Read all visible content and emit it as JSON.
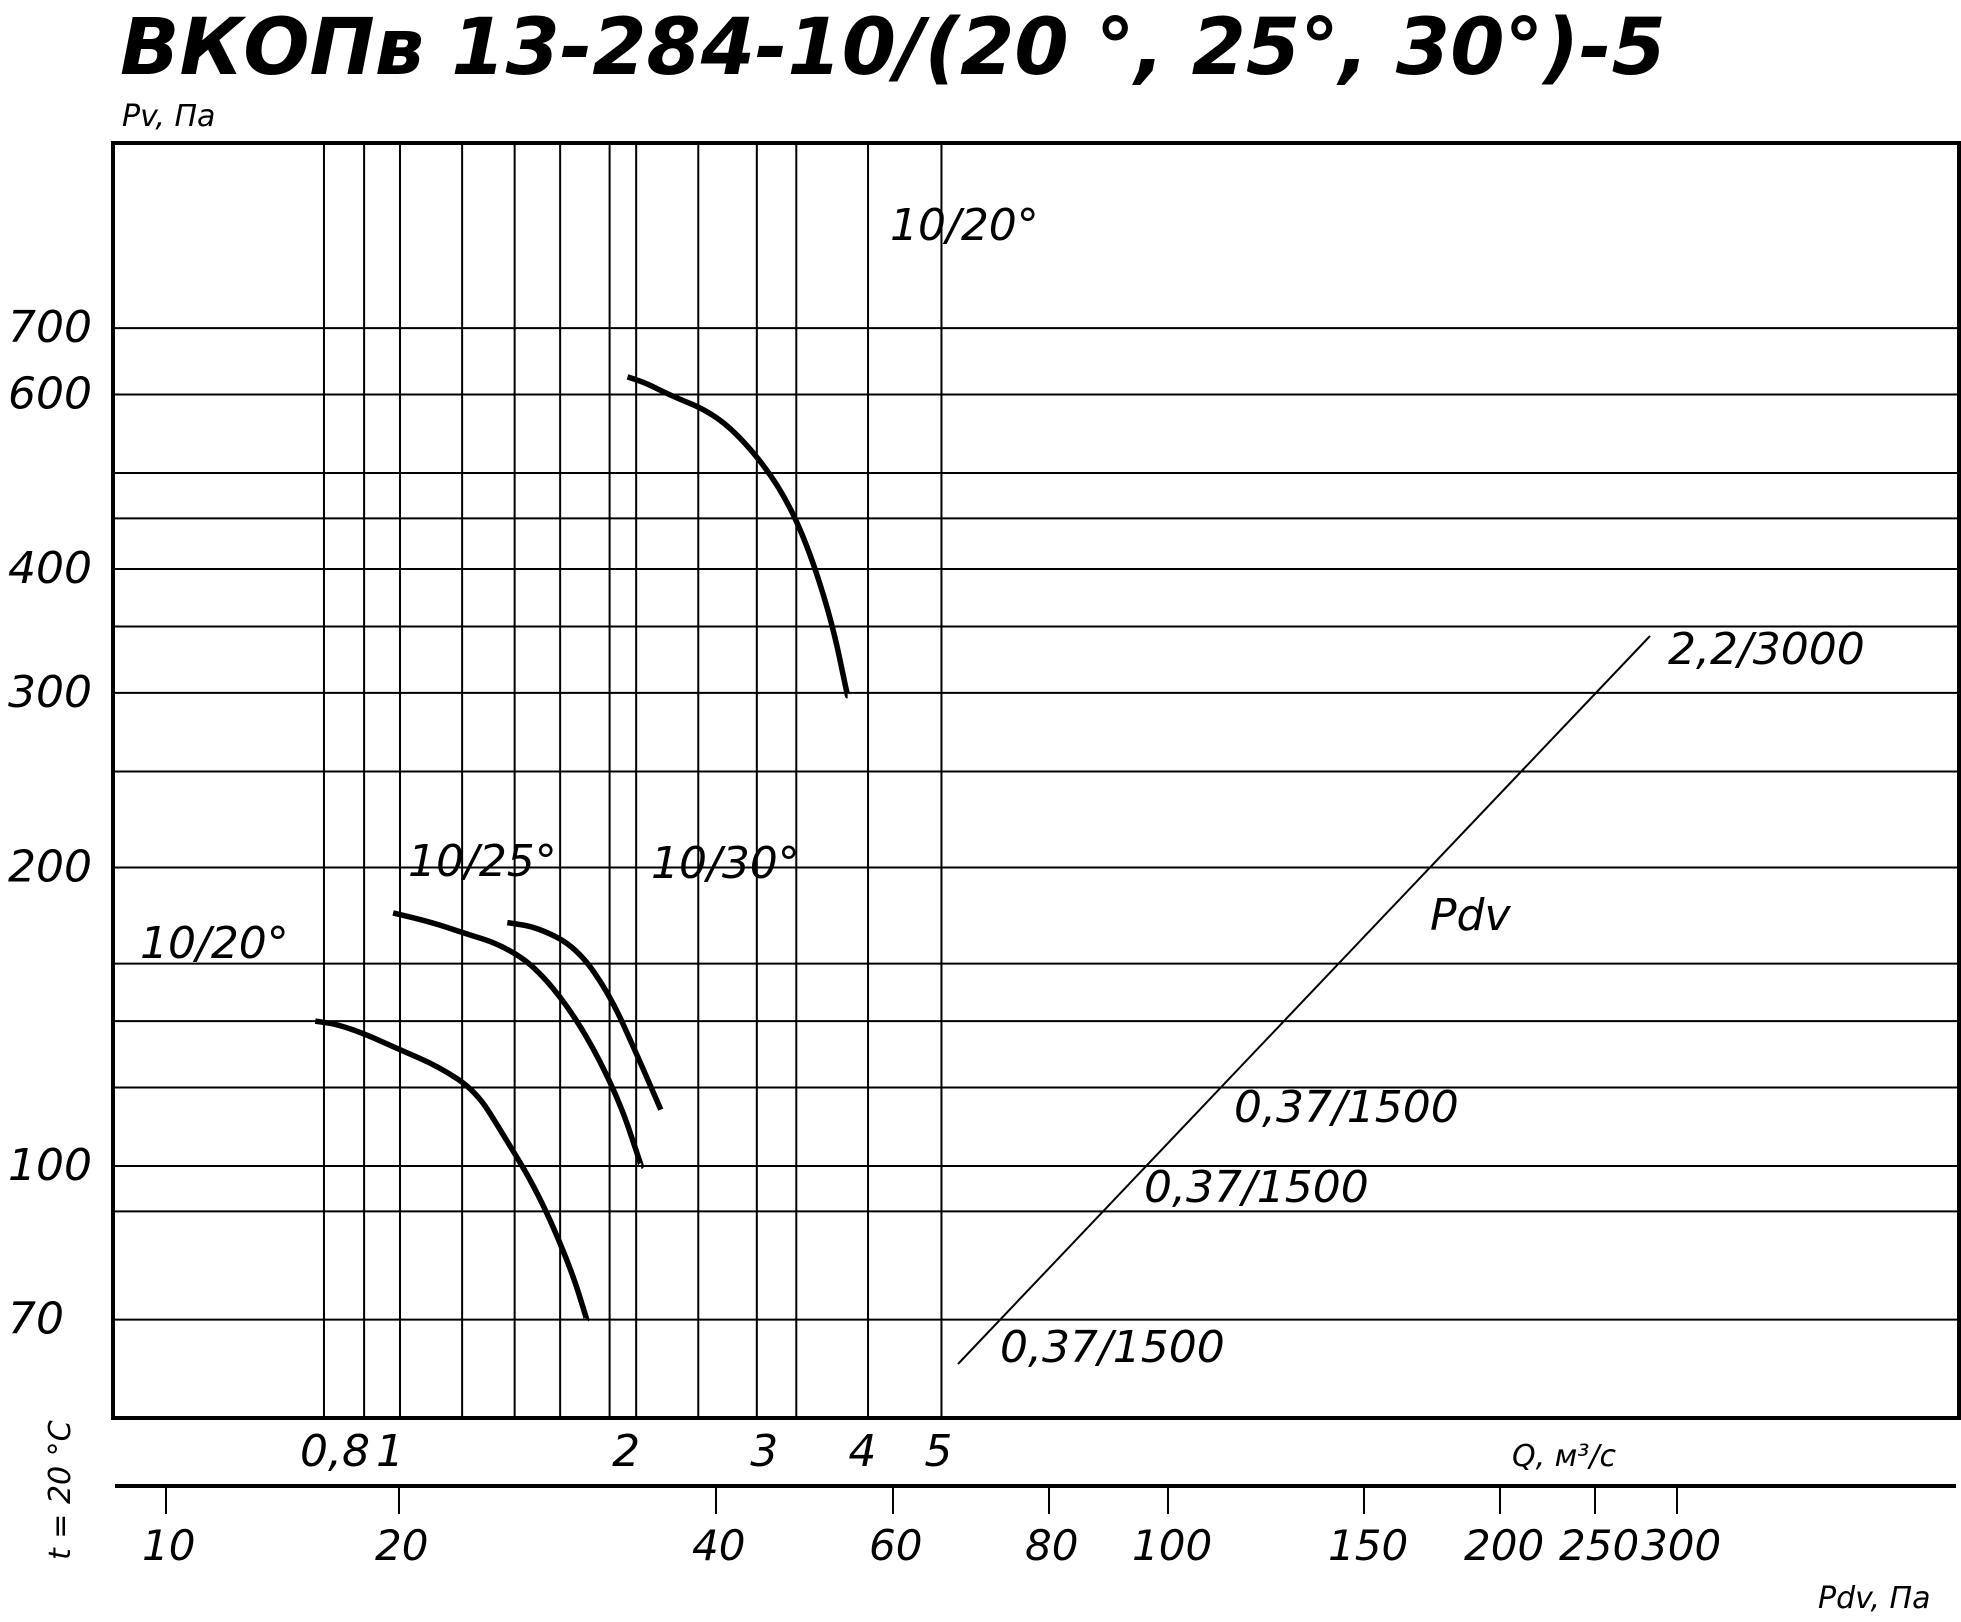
{
  "chart_data": {
    "type": "line",
    "title": "ВКОПв 13-284-10/(20 °, 25°, 30°)-5",
    "ylabel": "Pv, Па",
    "xlabel": "Q, м³/с",
    "x2label": "Pdv, Па",
    "temperature_label": "t = 20 °C",
    "x_scale": "log",
    "y_scale": "log",
    "xlim": [
      0.7,
      5.1
    ],
    "ylim": [
      60,
      800
    ],
    "y_ticks": [
      "700",
      "600",
      "400",
      "300",
      "200",
      "100",
      "70"
    ],
    "x_ticks": [
      "0,8",
      "1",
      "2",
      "3",
      "4",
      "5"
    ],
    "pdv_ticks": [
      "10",
      "20",
      "40",
      "60",
      "80",
      "100",
      "150",
      "200",
      "250",
      "300"
    ],
    "series": [
      {
        "name": "10/20°",
        "end_label": "2,2/3000",
        "points": [
          [
            1.95,
            625
          ],
          [
            2.05,
            617
          ],
          [
            2.2,
            600
          ],
          [
            2.5,
            575
          ],
          [
            2.75,
            538
          ],
          [
            3.05,
            484
          ],
          [
            3.3,
            425
          ],
          [
            3.55,
            355
          ],
          [
            3.72,
            298
          ]
        ]
      },
      {
        "name": "10/20°",
        "end_label": "0,37/1500",
        "points": [
          [
            0.78,
            140
          ],
          [
            0.83,
            139
          ],
          [
            0.9,
            136
          ],
          [
            1.0,
            131
          ],
          [
            1.12,
            126
          ],
          [
            1.25,
            119
          ],
          [
            1.35,
            108
          ],
          [
            1.5,
            94
          ],
          [
            1.65,
            79
          ],
          [
            1.73,
            70
          ]
        ]
      },
      {
        "name": "10/25°",
        "end_label": "0,37/1500",
        "points": [
          [
            0.98,
            180
          ],
          [
            1.1,
            176
          ],
          [
            1.2,
            172
          ],
          [
            1.35,
            167
          ],
          [
            1.5,
            158
          ],
          [
            1.7,
            139
          ],
          [
            1.9,
            117
          ],
          [
            2.03,
            100
          ]
        ]
      },
      {
        "name": "10/30°",
        "end_label": "0,37/1500",
        "points": [
          [
            1.37,
            176
          ],
          [
            1.5,
            174
          ],
          [
            1.68,
            166
          ],
          [
            1.85,
            149
          ],
          [
            2.0,
            130
          ],
          [
            2.15,
            114
          ]
        ]
      }
    ],
    "pdv_line_label": "Pdv",
    "grid": true
  }
}
